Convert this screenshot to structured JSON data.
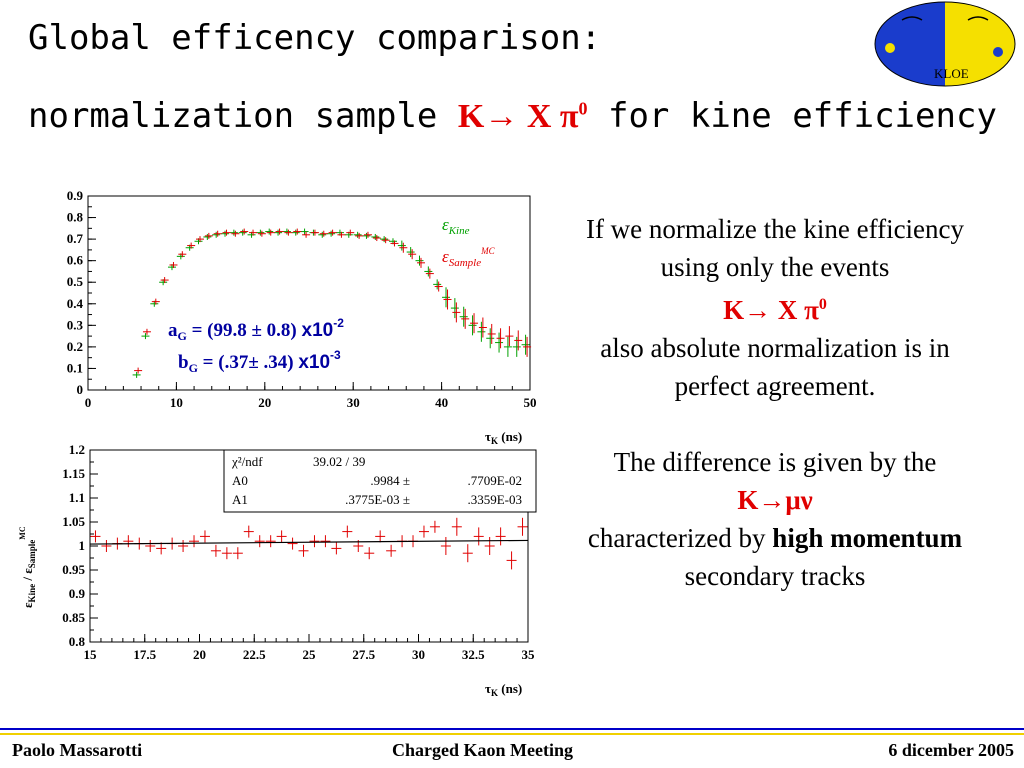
{
  "slide": {
    "title_line1": "Global efficency comparison:",
    "title_line2_prefix": "normalization sample ",
    "title_line2_decay": "K→ X π",
    "title_line2_decay_sup": "0",
    "title_line2_suffix": " for kine efficiency"
  },
  "logo": {
    "label": "KLOE"
  },
  "explanation": {
    "p1": "If we normalize the kine efficiency using only the events",
    "p1_decay": "K→ X π",
    "p1_decay_sup": "0",
    "p2": "also absolute normalization is in perfect agreement.",
    "p3": "The difference is given by the",
    "p3_decay": "K→μν",
    "p4_prefix": "characterized by ",
    "p4_bold": "high momentum",
    "p5": "secondary tracks"
  },
  "footer": {
    "author": "Paolo Massarotti",
    "meeting": "Charged Kaon Meeting",
    "date": "6 dicember 2005"
  },
  "colors": {
    "accent_red": "#e00000",
    "series_kine": "#00a000",
    "series_sample": "#e00000",
    "fit_box_text": "#000000",
    "footer_blue": "#0000c8",
    "footer_yellow": "#f0d000"
  },
  "chart_data": [
    {
      "type": "scatter",
      "xlabel": "τK (ns)",
      "ylabel": "",
      "xlim": [
        0,
        50
      ],
      "ylim": [
        0,
        0.9
      ],
      "x_ticks": [
        "0",
        "10",
        "20",
        "30",
        "40",
        "50"
      ],
      "y_ticks": [
        "0",
        "0.1",
        "0.2",
        "0.3",
        "0.4",
        "0.5",
        "0.6",
        "0.7",
        "0.8",
        "0.9"
      ],
      "legend": [
        "εKine",
        "εSample MC"
      ],
      "annotations": [
        "aG = (99.8 ± 0.8) x10-2",
        "bG = (.37± .34) x10-3"
      ],
      "series": [
        {
          "name": "εKine",
          "x": [
            5.5,
            6.5,
            7.5,
            8.5,
            9.5,
            10.5,
            11.5,
            12.5,
            13.5,
            14.5,
            15.5,
            16.5,
            17.5,
            18.5,
            19.5,
            20.5,
            21.5,
            22.5,
            23.5,
            24.5,
            25.5,
            26.5,
            27.5,
            28.5,
            29.5,
            30.5,
            31.5,
            32.5,
            33.5,
            34.5,
            35.5,
            36.5,
            37.5,
            38.5,
            39.5,
            40.5,
            41.5,
            42.5,
            43.5,
            44.5,
            45.5,
            46.5,
            47.5,
            48.5,
            49.5
          ],
          "y": [
            0.07,
            0.25,
            0.4,
            0.5,
            0.57,
            0.62,
            0.66,
            0.69,
            0.71,
            0.72,
            0.725,
            0.73,
            0.73,
            0.72,
            0.73,
            0.735,
            0.73,
            0.735,
            0.73,
            0.735,
            0.73,
            0.72,
            0.725,
            0.73,
            0.72,
            0.72,
            0.715,
            0.71,
            0.7,
            0.69,
            0.67,
            0.64,
            0.6,
            0.55,
            0.49,
            0.43,
            0.38,
            0.34,
            0.3,
            0.27,
            0.24,
            0.22,
            0.2,
            0.2,
            0.21
          ]
        },
        {
          "name": "εSample MC",
          "x": [
            5.5,
            6.5,
            7.5,
            8.5,
            9.5,
            10.5,
            11.5,
            12.5,
            13.5,
            14.5,
            15.5,
            16.5,
            17.5,
            18.5,
            19.5,
            20.5,
            21.5,
            22.5,
            23.5,
            24.5,
            25.5,
            26.5,
            27.5,
            28.5,
            29.5,
            30.5,
            31.5,
            32.5,
            33.5,
            34.5,
            35.5,
            36.5,
            37.5,
            38.5,
            39.5,
            40.5,
            41.5,
            42.5,
            43.5,
            44.5,
            45.5,
            46.5,
            47.5,
            48.5,
            49.5
          ],
          "y": [
            0.09,
            0.27,
            0.41,
            0.51,
            0.58,
            0.63,
            0.67,
            0.7,
            0.715,
            0.725,
            0.73,
            0.725,
            0.735,
            0.73,
            0.725,
            0.73,
            0.735,
            0.73,
            0.735,
            0.72,
            0.73,
            0.725,
            0.73,
            0.72,
            0.73,
            0.715,
            0.72,
            0.705,
            0.695,
            0.68,
            0.66,
            0.63,
            0.59,
            0.54,
            0.48,
            0.42,
            0.36,
            0.33,
            0.31,
            0.29,
            0.26,
            0.24,
            0.25,
            0.23,
            0.2
          ]
        }
      ]
    },
    {
      "type": "scatter",
      "xlabel": "τK (ns)",
      "ylabel": "εKine / εSample MC",
      "xlim": [
        15,
        35
      ],
      "ylim": [
        0.8,
        1.2
      ],
      "x_ticks": [
        "15",
        "17.5",
        "20",
        "22.5",
        "25",
        "27.5",
        "30",
        "32.5",
        "35"
      ],
      "y_ticks": [
        "0.8",
        "0.85",
        "0.9",
        "0.95",
        "1",
        "1.05",
        "1.1",
        "1.15",
        "1.2"
      ],
      "fit_box": {
        "rows": [
          [
            "χ²/ndf",
            "39.02 / 39"
          ],
          [
            "A0",
            ".9984 ±",
            ".7709E-02"
          ],
          [
            "A1",
            ".3775E-03 ±",
            ".3359E-03"
          ]
        ]
      },
      "fit_line": {
        "a0": 0.9984,
        "a1": 0.0003775
      },
      "series": [
        {
          "name": "ratio",
          "x": [
            15.25,
            15.75,
            16.25,
            16.75,
            17.25,
            17.75,
            18.25,
            18.75,
            19.25,
            19.75,
            20.25,
            20.75,
            21.25,
            21.75,
            22.25,
            22.75,
            23.25,
            23.75,
            24.25,
            24.75,
            25.25,
            25.75,
            26.25,
            26.75,
            27.25,
            27.75,
            28.25,
            28.75,
            29.25,
            29.75,
            30.25,
            30.75,
            31.25,
            31.75,
            32.25,
            32.75,
            33.25,
            33.75,
            34.25,
            34.75
          ],
          "y": [
            1.02,
            1.0,
            1.005,
            1.01,
            1.005,
            1.0,
            0.995,
            1.005,
            1.0,
            1.01,
            1.02,
            0.99,
            0.985,
            0.985,
            1.03,
            1.01,
            1.01,
            1.02,
            1.005,
            0.99,
            1.01,
            1.01,
            0.995,
            1.03,
            1.0,
            0.985,
            1.02,
            0.99,
            1.01,
            1.01,
            1.03,
            1.04,
            1.0,
            1.04,
            0.985,
            1.02,
            1.0,
            1.02,
            0.97,
            1.04
          ]
        }
      ]
    }
  ]
}
